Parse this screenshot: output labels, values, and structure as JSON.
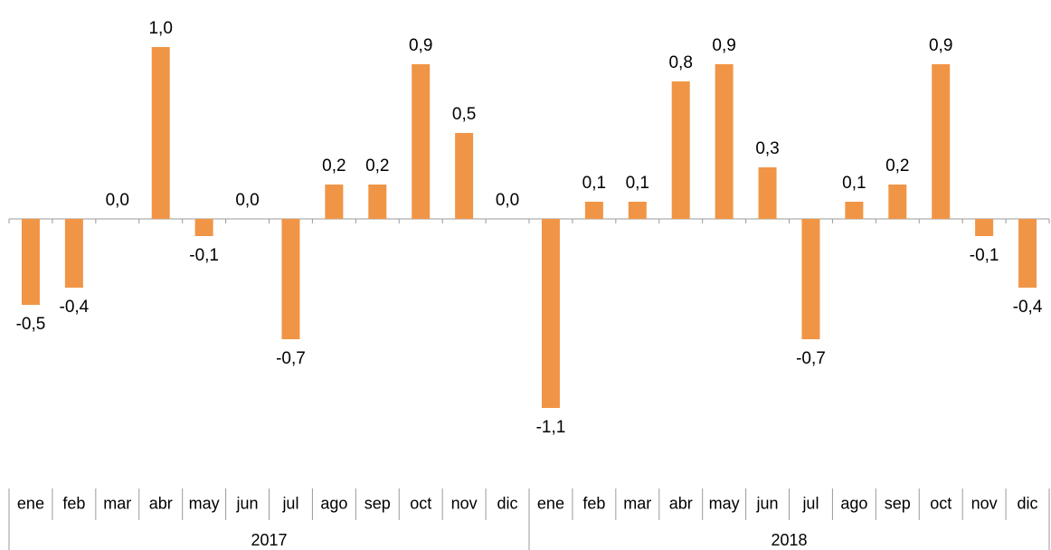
{
  "chart_data": {
    "type": "bar",
    "color": "#f09546",
    "groups": [
      {
        "name": "2017",
        "categories": [
          "ene",
          "feb",
          "mar",
          "abr",
          "may",
          "jun",
          "jul",
          "ago",
          "sep",
          "oct",
          "nov",
          "dic"
        ]
      },
      {
        "name": "2018",
        "categories": [
          "ene",
          "feb",
          "mar",
          "abr",
          "may",
          "jun",
          "jul",
          "ago",
          "sep",
          "oct",
          "nov",
          "dic"
        ]
      }
    ],
    "values": [
      -0.5,
      -0.4,
      0.0,
      1.0,
      -0.1,
      0.0,
      -0.7,
      0.2,
      0.2,
      0.9,
      0.5,
      0.0,
      -1.1,
      0.1,
      0.1,
      0.8,
      0.9,
      0.3,
      -0.7,
      0.1,
      0.2,
      0.9,
      -0.1,
      -0.4
    ],
    "value_labels": [
      "-0,5",
      "-0,4",
      "0,0",
      "1,0",
      "-0,1",
      "0,0",
      "-0,7",
      "0,2",
      "0,2",
      "0,9",
      "0,5",
      "0,0",
      "-1,1",
      "0,1",
      "0,1",
      "0,8",
      "0,9",
      "0,3",
      "-0,7",
      "0,1",
      "0,2",
      "0,9",
      "-0,1",
      "-0,4"
    ]
  }
}
